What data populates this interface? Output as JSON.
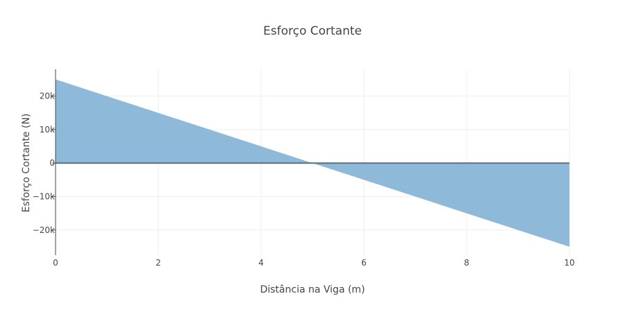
{
  "chart_data": {
    "type": "area",
    "title": "Esforço Cortante",
    "xlabel": "Distância na Viga (m)",
    "ylabel": "Esforço Cortante (N)",
    "x": [
      0,
      10
    ],
    "series": [
      {
        "x": [
          0,
          10
        ],
        "y": [
          25000,
          -25000
        ]
      }
    ],
    "xlim": [
      0,
      10
    ],
    "ylim": [
      -27500,
      28000
    ],
    "xticks": [
      0,
      2,
      4,
      6,
      8,
      10
    ],
    "xtick_labels": [
      "0",
      "2",
      "4",
      "6",
      "8",
      "10"
    ],
    "yticks": [
      20000,
      10000,
      0,
      -10000,
      -20000
    ],
    "ytick_labels": [
      "20k",
      "10k",
      "0",
      "−10k",
      "−20k"
    ],
    "grid": true,
    "fill_to": "zero",
    "colors": {
      "fill": "#8fb9d8",
      "zero_line": "#5a6f80",
      "grid": "#eeeeee"
    }
  }
}
